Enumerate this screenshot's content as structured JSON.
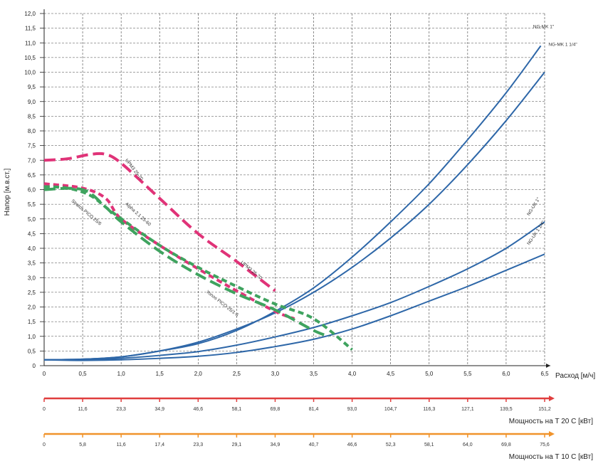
{
  "chart_data": {
    "type": "line",
    "ylabel": "Напор [м.в.ст.]",
    "xlabel": "Расход [м/ч]",
    "xlim": [
      0,
      6.5
    ],
    "ylim": [
      0,
      12
    ],
    "x_ticks": [
      "0",
      "0,5",
      "1,0",
      "1,5",
      "2,0",
      "2,5",
      "3,0",
      "3,5",
      "4,0",
      "4,5",
      "5,0",
      "5,5",
      "6,0",
      "6,5"
    ],
    "y_ticks": [
      "0",
      "0,5",
      "1,0",
      "1,5",
      "2,0",
      "2,5",
      "3,0",
      "3,5",
      "4,0",
      "4,5",
      "5,0",
      "5,5",
      "6,0",
      "6,5",
      "7,0",
      "7,5",
      "8,0",
      "8,5",
      "9,0",
      "9,5",
      "10,0",
      "10,5",
      "11,0",
      "11,5",
      "12,0"
    ],
    "grid": true,
    "series": [
      {
        "name": "NG-MK 1\"",
        "color": "#2e67a8",
        "style": "solid",
        "points": [
          [
            0,
            0.2
          ],
          [
            0.5,
            0.22
          ],
          [
            1,
            0.3
          ],
          [
            1.5,
            0.5
          ],
          [
            2,
            0.75
          ],
          [
            2.5,
            1.2
          ],
          [
            3,
            1.85
          ],
          [
            3.5,
            2.65
          ],
          [
            4,
            3.7
          ],
          [
            4.5,
            4.9
          ],
          [
            5,
            6.2
          ],
          [
            5.5,
            7.7
          ],
          [
            6,
            9.3
          ],
          [
            6.45,
            10.9
          ]
        ]
      },
      {
        "name": "NG-MK 1 1/4\"",
        "color": "#2e67a8",
        "style": "solid",
        "points": [
          [
            0,
            0.2
          ],
          [
            0.5,
            0.22
          ],
          [
            1,
            0.3
          ],
          [
            1.5,
            0.5
          ],
          [
            2,
            0.8
          ],
          [
            2.5,
            1.25
          ],
          [
            3,
            1.8
          ],
          [
            3.5,
            2.5
          ],
          [
            4,
            3.35
          ],
          [
            4.5,
            4.35
          ],
          [
            5,
            5.5
          ],
          [
            5.5,
            6.85
          ],
          [
            6,
            8.35
          ],
          [
            6.5,
            10.0
          ]
        ]
      },
      {
        "name": "NG-UK 1\"",
        "color": "#2e67a8",
        "style": "solid",
        "points": [
          [
            0,
            0.2
          ],
          [
            0.5,
            0.2
          ],
          [
            1,
            0.25
          ],
          [
            1.5,
            0.35
          ],
          [
            2,
            0.48
          ],
          [
            2.5,
            0.7
          ],
          [
            3,
            0.98
          ],
          [
            3.5,
            1.3
          ],
          [
            4,
            1.7
          ],
          [
            4.5,
            2.15
          ],
          [
            5,
            2.7
          ],
          [
            5.5,
            3.3
          ],
          [
            6,
            4.0
          ],
          [
            6.5,
            4.9
          ]
        ]
      },
      {
        "name": "NG-UK 1 1/4\"",
        "color": "#2e67a8",
        "style": "solid",
        "points": [
          [
            0,
            0.2
          ],
          [
            0.5,
            0.18
          ],
          [
            1,
            0.2
          ],
          [
            1.5,
            0.25
          ],
          [
            2,
            0.32
          ],
          [
            2.5,
            0.45
          ],
          [
            3,
            0.65
          ],
          [
            3.5,
            0.9
          ],
          [
            4,
            1.25
          ],
          [
            4.5,
            1.7
          ],
          [
            5,
            2.2
          ],
          [
            5.5,
            2.7
          ],
          [
            6,
            3.25
          ],
          [
            6.5,
            3.8
          ]
        ]
      },
      {
        "name": "UPM3 25-70",
        "color": "#e03378",
        "style": "dash",
        "points": [
          [
            0,
            7.0
          ],
          [
            0.3,
            7.05
          ],
          [
            0.6,
            7.2
          ],
          [
            0.8,
            7.2
          ],
          [
            1,
            6.9
          ],
          [
            1.5,
            5.7
          ],
          [
            2,
            4.5
          ],
          [
            2.5,
            3.55
          ],
          [
            3,
            2.55
          ]
        ]
      },
      {
        "name": "Alpha 2.1 25-60",
        "color": "#e03378",
        "style": "shortdash",
        "points": [
          [
            0,
            6.2
          ],
          [
            0.5,
            6.05
          ],
          [
            0.8,
            5.7
          ],
          [
            1,
            5.0
          ],
          [
            1.5,
            4.1
          ],
          [
            2,
            3.3
          ],
          [
            2.5,
            2.55
          ],
          [
            3,
            1.85
          ],
          [
            3.25,
            1.6
          ]
        ]
      },
      {
        "name": "Stratos PICO 25/6",
        "color": "#3fa35f",
        "style": "shortdash",
        "points": [
          [
            0,
            6.1
          ],
          [
            0.3,
            6.05
          ],
          [
            0.6,
            5.8
          ],
          [
            0.9,
            5.2
          ],
          [
            1.5,
            4.1
          ],
          [
            2,
            3.35
          ],
          [
            2.5,
            2.7
          ],
          [
            3,
            2.1
          ],
          [
            3.5,
            1.6
          ],
          [
            4,
            0.55
          ]
        ]
      },
      {
        "name": "Yonos PICO 25/1-6",
        "color": "#3fa35f",
        "style": "dash",
        "points": [
          [
            0,
            6.0
          ],
          [
            0.5,
            6.0
          ],
          [
            0.8,
            5.4
          ],
          [
            1,
            4.9
          ],
          [
            1.5,
            3.9
          ],
          [
            2,
            3.1
          ],
          [
            2.5,
            2.45
          ],
          [
            3,
            1.9
          ],
          [
            3.5,
            1.2
          ],
          [
            3.7,
            1.0
          ]
        ]
      }
    ],
    "annotations": [
      {
        "text": "NG-MK 1\"",
        "x": 6.35,
        "y": 11.5
      },
      {
        "text": "NG-MK 1 1/4\"",
        "x": 6.55,
        "y": 10.9
      },
      {
        "text": "NG-UK 1\"",
        "x": 6.3,
        "y": 5.1
      },
      {
        "text": "NG-UK 1 1/4\"",
        "x": 6.3,
        "y": 4.1
      },
      {
        "text": "UPM3 25-70",
        "x": 1.05,
        "y": 7.0
      },
      {
        "text": "UPM3 25-70",
        "x": 2.55,
        "y": 3.5
      },
      {
        "text": "Alpha 2.1 25-60",
        "x": 1.05,
        "y": 5.5
      },
      {
        "text": "Stratos PICO 25/6",
        "x": 0.35,
        "y": 5.6
      },
      {
        "text": "Yonos PICO 25/1-6",
        "x": 2.1,
        "y": 2.5
      }
    ],
    "power_scales": [
      {
        "label": "Мощность на   T 20 C [кВт]",
        "color": "#e03e3e",
        "ticks": [
          "0",
          "11,6",
          "23,3",
          "34,9",
          "46,6",
          "58,1",
          "69,8",
          "81,4",
          "93,0",
          "104,7",
          "116,3",
          "127,1",
          "139,5",
          "151,2"
        ]
      },
      {
        "label": "Мощность на   T 10 C [кВт]",
        "color": "#f0932b",
        "ticks": [
          "0",
          "5,8",
          "11,6",
          "17,4",
          "23,3",
          "29,1",
          "34,9",
          "40,7",
          "46,6",
          "52,3",
          "58,1",
          "64,0",
          "69,8",
          "75,6"
        ]
      }
    ]
  }
}
